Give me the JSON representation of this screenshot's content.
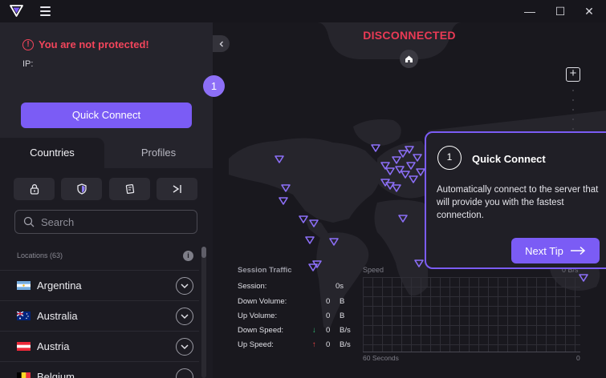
{
  "titlebar": {
    "minimize": "—",
    "maximize": "☐",
    "close": "✕"
  },
  "sidebar": {
    "status": "You are not protected!",
    "ip_label": "IP:",
    "quick_connect": "Quick Connect",
    "step_badge": "1",
    "tabs": [
      {
        "label": "Countries"
      },
      {
        "label": "Profiles"
      }
    ],
    "search_placeholder": "Search",
    "locations_count": "Locations (63)",
    "info": "i",
    "countries": [
      {
        "name": "Argentina"
      },
      {
        "name": "Australia"
      },
      {
        "name": "Austria"
      },
      {
        "name": "Belgium"
      }
    ]
  },
  "map": {
    "status": "DISCONNECTED",
    "zoom_in": "+"
  },
  "tip": {
    "step": "1",
    "title": "Quick Connect",
    "body": "Automatically connect to the server that will provide you with the fastest connection.",
    "next": "Next Tip"
  },
  "traffic": {
    "title": "Session Traffic",
    "rows": [
      {
        "label": "Session:",
        "value": "0s",
        "unit": ""
      },
      {
        "label": "Down Volume:",
        "value": "0",
        "unit": "B"
      },
      {
        "label": "Up Volume:",
        "value": "0",
        "unit": "B"
      },
      {
        "label": "Down Speed:",
        "value": "0",
        "unit": "B/s"
      },
      {
        "label": "Up Speed:",
        "value": "0",
        "unit": "B/s"
      }
    ],
    "speed_title": "Speed",
    "speed_unit": "0 B/s",
    "axis_left": "60 Seconds",
    "axis_right": "0"
  },
  "colors": {
    "accent": "#7b5cf5",
    "danger": "#ea3a55",
    "down": "#34c77b",
    "up": "#ef4444"
  }
}
